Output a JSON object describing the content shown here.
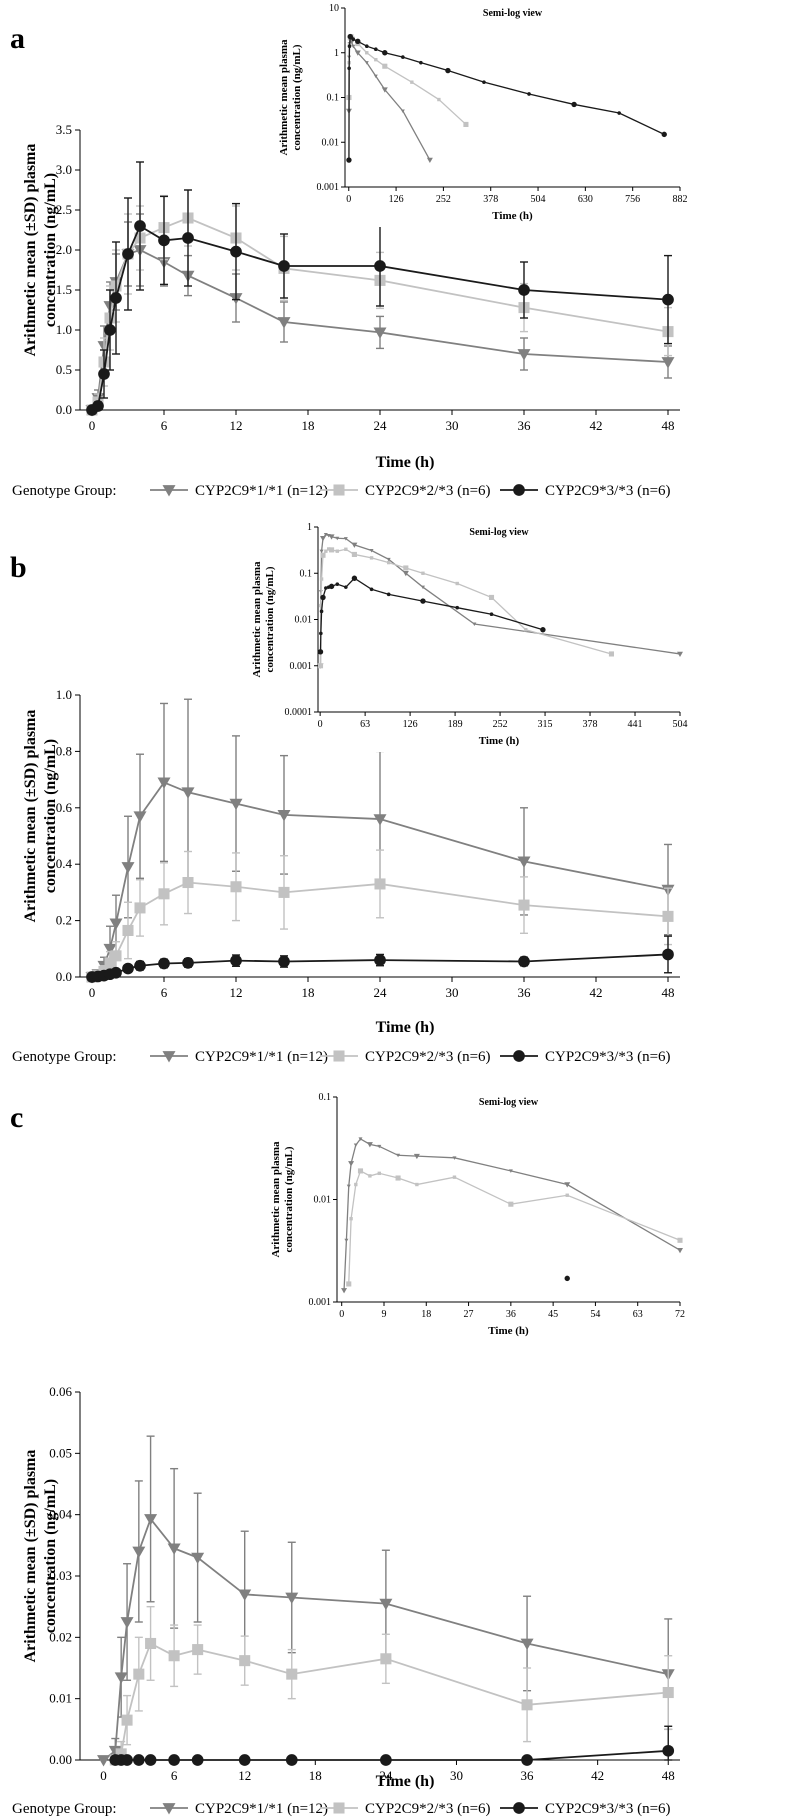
{
  "colors": {
    "g11": "#808080",
    "g23": "#c2c2c2",
    "g33": "#1a1a1a",
    "axis": "#000000"
  },
  "chart_data": [
    {
      "panel": "a",
      "type": "line",
      "title": "",
      "xlabel": "Time (h)",
      "ylabel": "Arithmetic mean (±SD) plasma concentration (ng/mL)",
      "xlim": [
        -1,
        49
      ],
      "ylim": [
        0,
        3.5
      ],
      "xticks": [
        "0",
        "6",
        "12",
        "18",
        "24",
        "30",
        "36",
        "42",
        "48"
      ],
      "yticks": [
        "0.0",
        "0.5",
        "1.0",
        "1.5",
        "2.0",
        "2.5",
        "3.0",
        "3.5"
      ],
      "legend_title": "Genotype Group:",
      "series": [
        {
          "name": "CYP2C9*1/*1 (n=12)",
          "marker": "tri",
          "x": [
            0,
            0.5,
            1,
            1.5,
            2,
            3,
            4,
            6,
            8,
            12,
            16,
            24,
            36,
            48
          ],
          "y": [
            0,
            0.15,
            0.8,
            1.3,
            1.6,
            1.95,
            2.0,
            1.85,
            1.68,
            1.4,
            1.1,
            0.97,
            0.7,
            0.6
          ],
          "sd": [
            0,
            0.1,
            0.25,
            0.3,
            0.35,
            0.4,
            0.45,
            0.3,
            0.25,
            0.3,
            0.25,
            0.2,
            0.2,
            0.2
          ]
        },
        {
          "name": "CYP2C9*2/*3 (n=6)",
          "marker": "square",
          "x": [
            0,
            0.5,
            1,
            1.5,
            2,
            3,
            4,
            6,
            8,
            12,
            16,
            24,
            36,
            48
          ],
          "y": [
            0,
            0.1,
            0.6,
            1.15,
            1.55,
            1.95,
            2.15,
            2.28,
            2.4,
            2.15,
            1.77,
            1.62,
            1.28,
            0.98
          ],
          "sd": [
            0,
            0.1,
            0.3,
            0.4,
            0.45,
            0.5,
            0.4,
            0.4,
            0.35,
            0.4,
            0.4,
            0.35,
            0.3,
            0.3
          ]
        },
        {
          "name": "CYP2C9*3/*3 (n=6)",
          "marker": "circle",
          "x": [
            0,
            0.5,
            1,
            1.5,
            2,
            3,
            4,
            6,
            8,
            12,
            16,
            24,
            36,
            48
          ],
          "y": [
            0,
            0.05,
            0.45,
            1.0,
            1.4,
            1.95,
            2.3,
            2.12,
            2.15,
            1.98,
            1.8,
            1.8,
            1.5,
            1.38
          ],
          "sd": [
            0,
            0.05,
            0.3,
            0.5,
            0.7,
            0.7,
            0.8,
            0.55,
            0.6,
            0.6,
            0.4,
            0.5,
            0.35,
            0.55
          ]
        }
      ],
      "inset": {
        "title": "Semi-log view",
        "xlabel": "Time (h)",
        "ylabel": "Arithmetic mean plasma concentration (ng/mL)",
        "xlim": [
          -10,
          882
        ],
        "ylim": [
          0.001,
          10
        ],
        "xaxis_end": 882,
        "xticks": [
          "0",
          "126",
          "252",
          "378",
          "504",
          "630",
          "756",
          "882"
        ],
        "yticks": [
          "0.001",
          "0.01",
          "0.1",
          "1",
          "10"
        ],
        "series": [
          {
            "name": "CYP2C9*1/*1",
            "x": [
              0.5,
              1,
              2,
              4,
              8,
              12,
              24,
              48,
              72,
              96,
              144,
              216
            ],
            "y": [
              0.05,
              0.8,
              1.6,
              2.0,
              1.7,
              1.4,
              1.0,
              0.6,
              0.3,
              0.15,
              0.05,
              0.004
            ]
          },
          {
            "name": "CYP2C9*2/*3",
            "x": [
              0.5,
              1,
              2,
              4,
              8,
              12,
              24,
              48,
              72,
              96,
              168,
              240,
              312
            ],
            "y": [
              0.1,
              0.6,
              1.5,
              2.15,
              2.4,
              2.1,
              1.6,
              1.0,
              0.7,
              0.5,
              0.22,
              0.09,
              0.025
            ]
          },
          {
            "name": "CYP2C9*3/*3",
            "x": [
              0.5,
              1,
              2,
              4,
              8,
              12,
              24,
              48,
              72,
              96,
              144,
              192,
              264,
              360,
              480,
              600,
              720,
              840
            ],
            "y": [
              0.004,
              0.45,
              1.4,
              2.3,
              2.15,
              2.0,
              1.8,
              1.4,
              1.2,
              1.0,
              0.8,
              0.6,
              0.4,
              0.22,
              0.12,
              0.07,
              0.045,
              0.015
            ]
          }
        ]
      }
    },
    {
      "panel": "b",
      "type": "line",
      "title": "",
      "xlabel": "Time (h)",
      "ylabel": "Arithmetic mean (±SD) plasma concentration (ng/mL)",
      "xlim": [
        -1,
        49
      ],
      "ylim": [
        0,
        1.0
      ],
      "xticks": [
        "0",
        "6",
        "12",
        "18",
        "24",
        "30",
        "36",
        "42",
        "48"
      ],
      "yticks": [
        "0.0",
        "0.2",
        "0.4",
        "0.6",
        "0.8",
        "1.0"
      ],
      "legend_title": "Genotype Group:",
      "series": [
        {
          "name": "CYP2C9*1/*1 (n=12)",
          "marker": "tri",
          "x": [
            0,
            0.5,
            1,
            1.5,
            2,
            3,
            4,
            6,
            8,
            12,
            16,
            24,
            36,
            48
          ],
          "y": [
            0,
            0.01,
            0.04,
            0.1,
            0.19,
            0.39,
            0.57,
            0.69,
            0.655,
            0.615,
            0.575,
            0.56,
            0.41,
            0.31
          ],
          "sd": [
            0,
            0.01,
            0.03,
            0.08,
            0.1,
            0.18,
            0.22,
            0.28,
            0.33,
            0.24,
            0.21,
            0.24,
            0.19,
            0.16
          ]
        },
        {
          "name": "CYP2C9*2/*3 (n=6)",
          "marker": "square",
          "x": [
            0,
            0.5,
            1,
            1.5,
            2,
            3,
            4,
            6,
            8,
            12,
            16,
            24,
            36,
            48
          ],
          "y": [
            0,
            0.005,
            0.02,
            0.05,
            0.075,
            0.165,
            0.245,
            0.295,
            0.335,
            0.32,
            0.3,
            0.33,
            0.255,
            0.215
          ],
          "sd": [
            0,
            0.005,
            0.02,
            0.04,
            0.05,
            0.1,
            0.1,
            0.11,
            0.11,
            0.12,
            0.13,
            0.12,
            0.1,
            0.1
          ]
        },
        {
          "name": "CYP2C9*3/*3 (n=6)",
          "marker": "circle",
          "x": [
            0,
            0.5,
            1,
            1.5,
            2,
            3,
            4,
            6,
            8,
            12,
            16,
            24,
            36,
            48
          ],
          "y": [
            0,
            0.002,
            0.005,
            0.01,
            0.015,
            0.03,
            0.04,
            0.048,
            0.05,
            0.058,
            0.055,
            0.06,
            0.055,
            0.08
          ],
          "sd": [
            0,
            0.002,
            0.005,
            0.008,
            0.01,
            0.012,
            0.015,
            0.015,
            0.015,
            0.02,
            0.02,
            0.02,
            0.015,
            0.065
          ]
        }
      ],
      "inset": {
        "title": "Semi-log view",
        "xlabel": "Time (h)",
        "ylabel": "Arithmetic mean plasma concentration (ng/mL)",
        "xlim": [
          -3,
          504
        ],
        "ylim": [
          0.0001,
          1
        ],
        "xaxis_end": 504,
        "xticks": [
          "0",
          "63",
          "126",
          "189",
          "252",
          "315",
          "378",
          "441",
          "504"
        ],
        "yticks": [
          "0.0001",
          "0.001",
          "0.01",
          "0.1",
          "1"
        ],
        "series": [
          {
            "name": "CYP2C9*1/*1",
            "x": [
              0.5,
              1,
              2,
              4,
              8,
              12,
              16,
              24,
              36,
              48,
              72,
              96,
              120,
              144,
              216,
              504
            ],
            "y": [
              0.001,
              0.04,
              0.3,
              0.57,
              0.69,
              0.655,
              0.62,
              0.57,
              0.56,
              0.41,
              0.31,
              0.2,
              0.1,
              0.05,
              0.008,
              0.0018
            ]
          },
          {
            "name": "CYP2C9*2/*3",
            "x": [
              0.5,
              1,
              2,
              4,
              8,
              12,
              16,
              24,
              36,
              48,
              72,
              96,
              120,
              144,
              192,
              240,
              288,
              408
            ],
            "y": [
              0.001,
              0.02,
              0.075,
              0.245,
              0.3,
              0.335,
              0.32,
              0.3,
              0.33,
              0.255,
              0.215,
              0.17,
              0.13,
              0.1,
              0.06,
              0.03,
              0.006,
              0.0018
            ]
          },
          {
            "name": "CYP2C9*3/*3",
            "x": [
              0.5,
              1,
              2,
              4,
              8,
              12,
              16,
              24,
              36,
              48,
              72,
              96,
              144,
              192,
              240,
              312
            ],
            "y": [
              0.002,
              0.005,
              0.015,
              0.03,
              0.048,
              0.05,
              0.052,
              0.058,
              0.05,
              0.078,
              0.045,
              0.035,
              0.025,
              0.018,
              0.013,
              0.006
            ]
          }
        ]
      }
    },
    {
      "panel": "c",
      "type": "line",
      "title": "",
      "xlabel": "Time (h)",
      "ylabel": "Arithmetic mean (±SD) plasma concentration (ng/mL)",
      "xlim": [
        -2,
        49
      ],
      "ylim": [
        0,
        0.06
      ],
      "xticks": [
        "0",
        "6",
        "12",
        "18",
        "24",
        "30",
        "36",
        "42",
        "48"
      ],
      "yticks": [
        "0.00",
        "0.01",
        "0.02",
        "0.03",
        "0.04",
        "0.05",
        "0.06"
      ],
      "legend_title": "Genotype Group:",
      "series": [
        {
          "name": "CYP2C9*1/*1 (n=12)",
          "marker": "tri",
          "x": [
            0,
            1,
            1.5,
            2,
            3,
            4,
            6,
            8,
            12,
            16,
            24,
            36,
            48
          ],
          "y": [
            0,
            0.0015,
            0.0135,
            0.0225,
            0.034,
            0.0393,
            0.0345,
            0.033,
            0.027,
            0.0265,
            0.0255,
            0.019,
            0.014
          ],
          "sd": [
            0,
            0.002,
            0.0065,
            0.0095,
            0.0115,
            0.0135,
            0.013,
            0.0105,
            0.0103,
            0.009,
            0.0087,
            0.0077,
            0.009
          ]
        },
        {
          "name": "CYP2C9*2/*3 (n=6)",
          "marker": "square",
          "x": [
            1,
            1.5,
            2,
            3,
            4,
            6,
            8,
            12,
            16,
            24,
            36,
            48
          ],
          "y": [
            0,
            0.001,
            0.0065,
            0.014,
            0.019,
            0.017,
            0.018,
            0.0162,
            0.014,
            0.0165,
            0.009,
            0.011
          ],
          "sd": [
            0,
            0.002,
            0.004,
            0.006,
            0.006,
            0.005,
            0.004,
            0.004,
            0.004,
            0.004,
            0.006,
            0.006
          ]
        },
        {
          "name": "CYP2C9*3/*3 (n=6)",
          "marker": "circle",
          "x": [
            1,
            1.5,
            2,
            3,
            4,
            6,
            8,
            12,
            16,
            24,
            36,
            48
          ],
          "y": [
            0,
            0,
            0,
            0,
            0,
            0,
            0,
            0,
            0,
            0,
            0,
            0.0015
          ],
          "sd": [
            0,
            0,
            0,
            0,
            0,
            0,
            0,
            0,
            0,
            0,
            0,
            0.004
          ]
        }
      ],
      "inset": {
        "title": "Semi-log view",
        "xlabel": "Time (h)",
        "ylabel": "Arithmetic mean plasma concentration (ng/mL)",
        "xlim": [
          -1,
          72
        ],
        "ylim": [
          0.001,
          0.1
        ],
        "xaxis_end": 72,
        "xticks": [
          "0",
          "9",
          "18",
          "27",
          "36",
          "45",
          "54",
          "63",
          "72"
        ],
        "yticks": [
          "0.001",
          "0.01",
          "0.1"
        ],
        "series": [
          {
            "name": "CYP2C9*1/*1",
            "x": [
              0.5,
              1,
              1.5,
              2,
              3,
              4,
              6,
              8,
              12,
              16,
              24,
              36,
              48,
              72
            ],
            "y": [
              0.0013,
              0.004,
              0.0135,
              0.0225,
              0.034,
              0.039,
              0.0345,
              0.033,
              0.027,
              0.0265,
              0.0255,
              0.019,
              0.014,
              0.0032
            ]
          },
          {
            "name": "CYP2C9*2/*3",
            "x": [
              1.5,
              2,
              3,
              4,
              6,
              8,
              12,
              16,
              24,
              36,
              48,
              72
            ],
            "y": [
              0.0015,
              0.0065,
              0.014,
              0.019,
              0.017,
              0.018,
              0.0162,
              0.014,
              0.0165,
              0.009,
              0.011,
              0.004
            ]
          },
          {
            "name": "CYP2C9*3/*3",
            "x": [
              48
            ],
            "y": [
              0.0017
            ]
          }
        ]
      }
    }
  ]
}
